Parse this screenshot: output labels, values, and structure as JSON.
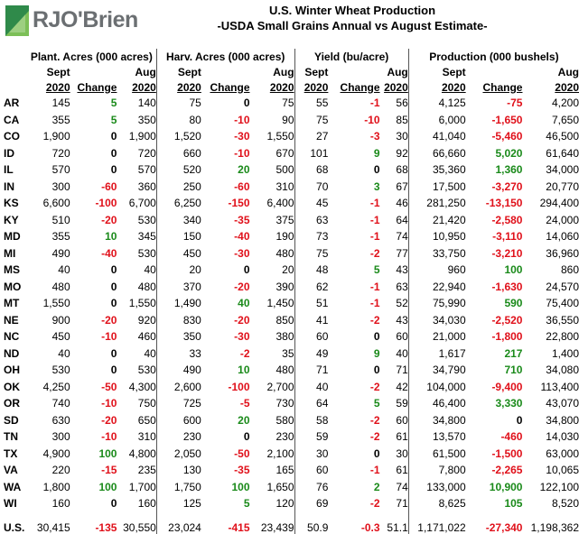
{
  "logo": {
    "text": "RJO'Brien"
  },
  "header": {
    "title": "U.S. Winter Wheat Production",
    "subtitle": "-USDA Small Grains Annual vs August Estimate-"
  },
  "columns": {
    "groups": [
      "Plant. Acres (000 acres)",
      "Harv. Acres (000 acres)",
      "Yield (bu/acre)",
      "Production (000 bushels)"
    ],
    "sept": "Sept",
    "aug": "Aug",
    "year": "2020",
    "change": "Change"
  },
  "colors": {
    "positive": "#1a8a1a",
    "negative": "#e0101a"
  },
  "chart_data": {
    "type": "table",
    "title": "U.S. Winter Wheat Production",
    "subtitle": "-USDA Small Grains Annual vs August Estimate-",
    "rows": [
      {
        "state": "AR",
        "pa": [
          "145",
          "5",
          "140"
        ],
        "ha": [
          "75",
          "0",
          "75"
        ],
        "y": [
          "55",
          "-1",
          "56"
        ],
        "p": [
          "4,125",
          "-75",
          "4,200"
        ]
      },
      {
        "state": "CA",
        "pa": [
          "355",
          "5",
          "350"
        ],
        "ha": [
          "80",
          "-10",
          "90"
        ],
        "y": [
          "75",
          "-10",
          "85"
        ],
        "p": [
          "6,000",
          "-1,650",
          "7,650"
        ]
      },
      {
        "state": "CO",
        "pa": [
          "1,900",
          "0",
          "1,900"
        ],
        "ha": [
          "1,520",
          "-30",
          "1,550"
        ],
        "y": [
          "27",
          "-3",
          "30"
        ],
        "p": [
          "41,040",
          "-5,460",
          "46,500"
        ]
      },
      {
        "state": "ID",
        "pa": [
          "720",
          "0",
          "720"
        ],
        "ha": [
          "660",
          "-10",
          "670"
        ],
        "y": [
          "101",
          "9",
          "92"
        ],
        "p": [
          "66,660",
          "5,020",
          "61,640"
        ]
      },
      {
        "state": "IL",
        "pa": [
          "570",
          "0",
          "570"
        ],
        "ha": [
          "520",
          "20",
          "500"
        ],
        "y": [
          "68",
          "0",
          "68"
        ],
        "p": [
          "35,360",
          "1,360",
          "34,000"
        ]
      },
      {
        "state": "IN",
        "pa": [
          "300",
          "-60",
          "360"
        ],
        "ha": [
          "250",
          "-60",
          "310"
        ],
        "y": [
          "70",
          "3",
          "67"
        ],
        "p": [
          "17,500",
          "-3,270",
          "20,770"
        ]
      },
      {
        "state": "KS",
        "pa": [
          "6,600",
          "-100",
          "6,700"
        ],
        "ha": [
          "6,250",
          "-150",
          "6,400"
        ],
        "y": [
          "45",
          "-1",
          "46"
        ],
        "p": [
          "281,250",
          "-13,150",
          "294,400"
        ]
      },
      {
        "state": "KY",
        "pa": [
          "510",
          "-20",
          "530"
        ],
        "ha": [
          "340",
          "-35",
          "375"
        ],
        "y": [
          "63",
          "-1",
          "64"
        ],
        "p": [
          "21,420",
          "-2,580",
          "24,000"
        ]
      },
      {
        "state": "MD",
        "pa": [
          "355",
          "10",
          "345"
        ],
        "ha": [
          "150",
          "-40",
          "190"
        ],
        "y": [
          "73",
          "-1",
          "74"
        ],
        "p": [
          "10,950",
          "-3,110",
          "14,060"
        ]
      },
      {
        "state": "MI",
        "pa": [
          "490",
          "-40",
          "530"
        ],
        "ha": [
          "450",
          "-30",
          "480"
        ],
        "y": [
          "75",
          "-2",
          "77"
        ],
        "p": [
          "33,750",
          "-3,210",
          "36,960"
        ]
      },
      {
        "state": "MS",
        "pa": [
          "40",
          "0",
          "40"
        ],
        "ha": [
          "20",
          "0",
          "20"
        ],
        "y": [
          "48",
          "5",
          "43"
        ],
        "p": [
          "960",
          "100",
          "860"
        ]
      },
      {
        "state": "MO",
        "pa": [
          "480",
          "0",
          "480"
        ],
        "ha": [
          "370",
          "-20",
          "390"
        ],
        "y": [
          "62",
          "-1",
          "63"
        ],
        "p": [
          "22,940",
          "-1,630",
          "24,570"
        ]
      },
      {
        "state": "MT",
        "pa": [
          "1,550",
          "0",
          "1,550"
        ],
        "ha": [
          "1,490",
          "40",
          "1,450"
        ],
        "y": [
          "51",
          "-1",
          "52"
        ],
        "p": [
          "75,990",
          "590",
          "75,400"
        ]
      },
      {
        "state": "NE",
        "pa": [
          "900",
          "-20",
          "920"
        ],
        "ha": [
          "830",
          "-20",
          "850"
        ],
        "y": [
          "41",
          "-2",
          "43"
        ],
        "p": [
          "34,030",
          "-2,520",
          "36,550"
        ]
      },
      {
        "state": "NC",
        "pa": [
          "450",
          "-10",
          "460"
        ],
        "ha": [
          "350",
          "-30",
          "380"
        ],
        "y": [
          "60",
          "0",
          "60"
        ],
        "p": [
          "21,000",
          "-1,800",
          "22,800"
        ]
      },
      {
        "state": "ND",
        "pa": [
          "40",
          "0",
          "40"
        ],
        "ha": [
          "33",
          "-2",
          "35"
        ],
        "y": [
          "49",
          "9",
          "40"
        ],
        "p": [
          "1,617",
          "217",
          "1,400"
        ]
      },
      {
        "state": "OH",
        "pa": [
          "530",
          "0",
          "530"
        ],
        "ha": [
          "490",
          "10",
          "480"
        ],
        "y": [
          "71",
          "0",
          "71"
        ],
        "p": [
          "34,790",
          "710",
          "34,080"
        ]
      },
      {
        "state": "OK",
        "pa": [
          "4,250",
          "-50",
          "4,300"
        ],
        "ha": [
          "2,600",
          "-100",
          "2,700"
        ],
        "y": [
          "40",
          "-2",
          "42"
        ],
        "p": [
          "104,000",
          "-9,400",
          "113,400"
        ]
      },
      {
        "state": "OR",
        "pa": [
          "740",
          "-10",
          "750"
        ],
        "ha": [
          "725",
          "-5",
          "730"
        ],
        "y": [
          "64",
          "5",
          "59"
        ],
        "p": [
          "46,400",
          "3,330",
          "43,070"
        ]
      },
      {
        "state": "SD",
        "pa": [
          "630",
          "-20",
          "650"
        ],
        "ha": [
          "600",
          "20",
          "580"
        ],
        "y": [
          "58",
          "-2",
          "60"
        ],
        "p": [
          "34,800",
          "0",
          "34,800"
        ]
      },
      {
        "state": "TN",
        "pa": [
          "300",
          "-10",
          "310"
        ],
        "ha": [
          "230",
          "0",
          "230"
        ],
        "y": [
          "59",
          "-2",
          "61"
        ],
        "p": [
          "13,570",
          "-460",
          "14,030"
        ]
      },
      {
        "state": "TX",
        "pa": [
          "4,900",
          "100",
          "4,800"
        ],
        "ha": [
          "2,050",
          "-50",
          "2,100"
        ],
        "y": [
          "30",
          "0",
          "30"
        ],
        "p": [
          "61,500",
          "-1,500",
          "63,000"
        ]
      },
      {
        "state": "VA",
        "pa": [
          "220",
          "-15",
          "235"
        ],
        "ha": [
          "130",
          "-35",
          "165"
        ],
        "y": [
          "60",
          "-1",
          "61"
        ],
        "p": [
          "7,800",
          "-2,265",
          "10,065"
        ]
      },
      {
        "state": "WA",
        "pa": [
          "1,800",
          "100",
          "1,700"
        ],
        "ha": [
          "1,750",
          "100",
          "1,650"
        ],
        "y": [
          "76",
          "2",
          "74"
        ],
        "p": [
          "133,000",
          "10,900",
          "122,100"
        ]
      },
      {
        "state": "WI",
        "pa": [
          "160",
          "0",
          "160"
        ],
        "ha": [
          "125",
          "5",
          "120"
        ],
        "y": [
          "69",
          "-2",
          "71"
        ],
        "p": [
          "8,625",
          "105",
          "8,520"
        ]
      }
    ],
    "total": {
      "state": "U.S.",
      "pa": [
        "30,415",
        "-135",
        "30,550"
      ],
      "ha": [
        "23,024",
        "-415",
        "23,439"
      ],
      "y": [
        "50.9",
        "-0.3",
        "51.1"
      ],
      "p": [
        "1,171,022",
        "-27,340",
        "1,198,362"
      ]
    }
  }
}
